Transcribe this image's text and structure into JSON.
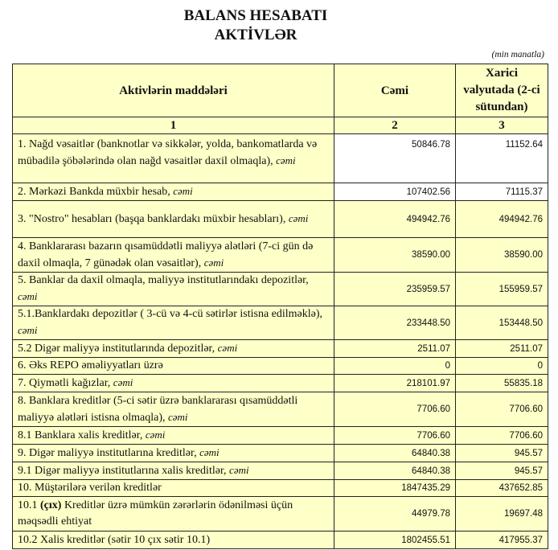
{
  "title": "BALANS HESABATI",
  "subtitle": "AKTİVLƏR",
  "unit": "(min manatla)",
  "headers": [
    "Aktivlərin   maddələri",
    "Cəmi",
    "Xarici valyutada (2-ci sütundan)"
  ],
  "index": [
    "1",
    "2",
    "3"
  ],
  "rows": [
    {
      "label": "1. Nağd vəsaitlər (banknotlar və sikkələr, yolda, bankomatlarda və mübadilə şöbələrində olan nağd vəsaitlər daxil olmaqla), ",
      "suffix": "cəmi",
      "total": "50846.78",
      "fx": "11152.64"
    },
    {
      "label": "2. Mərkəzi Bankda müxbir hesab, ",
      "suffix": "cəmi",
      "total": "107402.56",
      "fx": "71115.37"
    },
    {
      "label": "3. \"Nostro\" hesabları (başqa banklardakı müxbir hesabları), ",
      "suffix": "cəmi",
      "total": "494942.76",
      "fx": "494942.76"
    },
    {
      "label": "4. Banklararası bazarın qısamüddətli maliyyə alətləri (7-ci gün də daxil olmaqla, 7 günədək olan vəsaitlər), ",
      "suffix": "cəmi",
      "total": "38590.00",
      "fx": "38590.00"
    },
    {
      "label": "5. Banklar da daxil olmaqla, maliyyə institutlarındakı depozitlər, ",
      "suffix": "cəmi",
      "total": "235959.57",
      "fx": "155959.57"
    },
    {
      "label": "5.1.Banklardakı depozitlər ( 3-cü və 4-cü sətirlər istisna edilməklə), ",
      "suffix": "cəmi",
      "total": "233448.50",
      "fx": "153448.50"
    },
    {
      "label": "5.2 Digər maliyyə institutlarında depozitlər, ",
      "suffix": "cəmi",
      "total": "2511.07",
      "fx": "2511.07"
    },
    {
      "label": "6. Əks REPO əməliyyatları üzrə",
      "suffix": "",
      "total": "0",
      "fx": "0"
    },
    {
      "label": "7. Qiymətli kağızlar, ",
      "suffix": "cəmi",
      "total": "218101.97",
      "fx": "55835.18"
    },
    {
      "label": "8. Banklara kreditlər (5-ci sətir üzrə banklararası qısamüddətli maliyyə alətləri istisna olmaqla), ",
      "suffix": "cəmi",
      "total": "7706.60",
      "fx": "7706.60"
    },
    {
      "label": "8.1 Banklara xalis kreditlər, ",
      "suffix": "cəmi",
      "total": "7706.60",
      "fx": "7706.60"
    },
    {
      "label": "9. Digər maliyyə institutlarına kreditlər, ",
      "suffix": "cəmi",
      "total": "64840.38",
      "fx": "945.57"
    },
    {
      "label": "9.1 Digər maliyyə institutlarına xalis kreditlər, ",
      "suffix": "cəmi",
      "total": "64840.38",
      "fx": "945.57"
    },
    {
      "label": "10. Müştərilərə verilən kreditlər",
      "suffix": "",
      "total": "1847435.29",
      "fx": "437652.85"
    },
    {
      "label": "10.1 ",
      "bold": "(çıx)",
      "rest": " Kreditlər üzrə mümkün zərərlərin ödənilməsi üçün məqsədli ehtiyat",
      "total": "44979.78",
      "fx": "19697.48"
    },
    {
      "label": "10.2 Xalis kreditlər (sətir 10 çıx sətir 10.1)",
      "suffix": "",
      "total": "1802455.51",
      "fx": "417955.37"
    }
  ]
}
